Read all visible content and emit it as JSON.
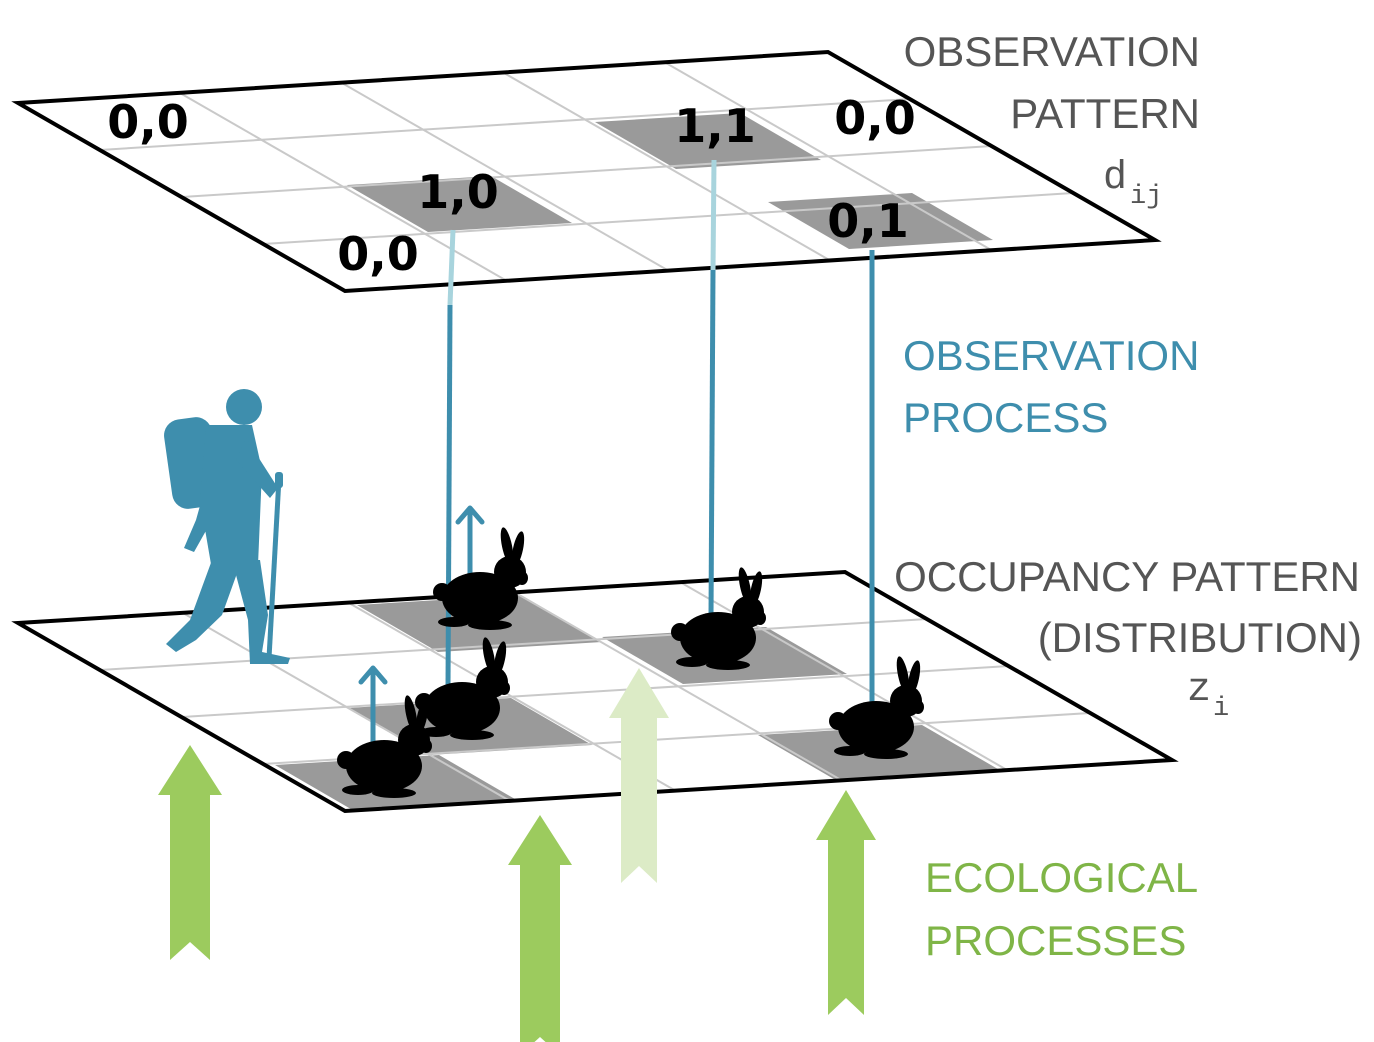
{
  "colors": {
    "grid_line": "#c9c9c9",
    "frame": "#000000",
    "shaded_cell": "#9a9a9a",
    "observation_blue": "#3e8ead",
    "observation_blue_light": "#a8d4dd",
    "ecological_green": "#9ccb5e",
    "ecological_green_light": "#dcebc6",
    "label_gray": "#555555",
    "animal": "#000000"
  },
  "icons": {
    "hiker": "hiker-silhouette-icon",
    "animal": "rabbit-silhouette-icon",
    "arrow": "up-arrow-icon"
  },
  "labels": {
    "observation_pattern_line1": "OBSERVATION",
    "observation_pattern_line2": "PATTERN",
    "observation_symbol": "d",
    "observation_subscript": "ij",
    "observation_process_line1": "OBSERVATION",
    "observation_process_line2": "PROCESS",
    "occupancy_line1": "OCCUPANCY PATTERN",
    "occupancy_line2": "(DISTRIBUTION)",
    "occupancy_symbol": "z",
    "occupancy_subscript": "i",
    "ecological_line1": "ECOLOGICAL",
    "ecological_line2": "PROCESSES"
  },
  "observation_cells": [
    {
      "value": "0,0"
    },
    {
      "value": "1,1"
    },
    {
      "value": "0,0"
    },
    {
      "value": "1,0"
    },
    {
      "value": "0,0"
    },
    {
      "value": "0,1"
    }
  ]
}
